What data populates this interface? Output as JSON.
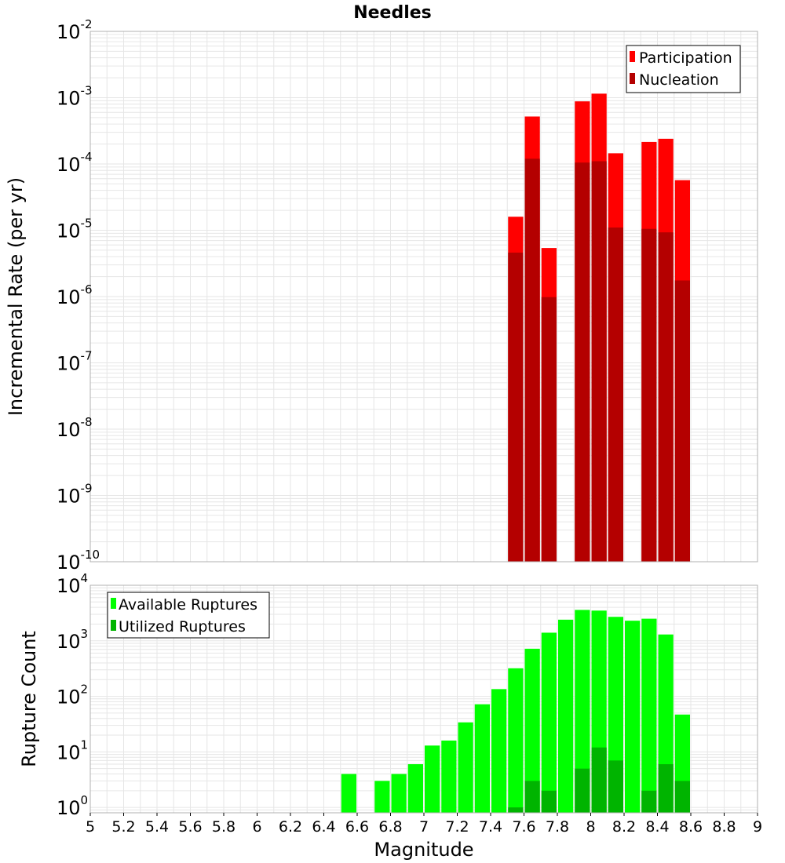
{
  "chart_data": [
    {
      "type": "bar",
      "title": "Needles",
      "xlabel": "",
      "ylabel": "Incremental Rate (per yr)",
      "yscale": "log",
      "ylim": [
        1e-10,
        0.01
      ],
      "xlim": [
        5,
        9
      ],
      "yticks": [
        {
          "base": "10",
          "exp": "-10"
        },
        {
          "base": "10",
          "exp": "-9"
        },
        {
          "base": "10",
          "exp": "-8"
        },
        {
          "base": "10",
          "exp": "-7"
        },
        {
          "base": "10",
          "exp": "-6"
        },
        {
          "base": "10",
          "exp": "-5"
        },
        {
          "base": "10",
          "exp": "-4"
        },
        {
          "base": "10",
          "exp": "-3"
        },
        {
          "base": "10",
          "exp": "-2"
        }
      ],
      "grid": true,
      "legend": "top-right",
      "bin_width": 0.1,
      "series": [
        {
          "name": "Participation",
          "color": "#ff0000",
          "x": [
            7.55,
            7.65,
            7.75,
            7.95,
            8.05,
            8.15,
            8.35,
            8.45,
            8.55
          ],
          "values": [
            1.6e-05,
            0.00052,
            5.4e-06,
            0.00088,
            0.00115,
            0.000145,
            0.000215,
            0.00024,
            5.7e-05
          ]
        },
        {
          "name": "Nucleation",
          "color": "#b40000",
          "x": [
            7.55,
            7.65,
            7.75,
            7.95,
            8.05,
            8.15,
            8.35,
            8.45,
            8.55
          ],
          "values": [
            4.6e-06,
            0.00012,
            9.8e-07,
            0.000105,
            0.00011,
            1.1e-05,
            1.05e-05,
            9.3e-06,
            1.75e-06
          ]
        }
      ]
    },
    {
      "type": "bar",
      "title": "",
      "xlabel": "Magnitude",
      "ylabel": "Rupture Count",
      "yscale": "log",
      "ylim": [
        0.8,
        10000
      ],
      "xlim": [
        5,
        9
      ],
      "xticks": [
        "5",
        "5.2",
        "5.4",
        "5.6",
        "5.8",
        "6",
        "6.2",
        "6.4",
        "6.6",
        "6.8",
        "7",
        "7.2",
        "7.4",
        "7.6",
        "7.8",
        "8",
        "8.2",
        "8.4",
        "8.6",
        "8.8",
        "9"
      ],
      "yticks": [
        {
          "base": "10",
          "exp": "0"
        },
        {
          "base": "10",
          "exp": "1"
        },
        {
          "base": "10",
          "exp": "2"
        },
        {
          "base": "10",
          "exp": "3"
        },
        {
          "base": "10",
          "exp": "4"
        }
      ],
      "grid": true,
      "legend": "top-left",
      "bin_width": 0.1,
      "series": [
        {
          "name": "Available Ruptures",
          "color": "#00ff00",
          "x": [
            6.55,
            6.75,
            6.85,
            6.95,
            7.05,
            7.15,
            7.25,
            7.35,
            7.45,
            7.55,
            7.65,
            7.75,
            7.85,
            7.95,
            8.05,
            8.15,
            8.25,
            8.35,
            8.45,
            8.55
          ],
          "values": [
            4,
            3,
            4,
            6,
            13,
            16,
            34,
            72,
            135,
            320,
            720,
            1400,
            2400,
            3600,
            3500,
            2700,
            2300,
            2500,
            1300,
            47
          ]
        },
        {
          "name": "Utilized Ruptures",
          "color": "#00b400",
          "x": [
            7.55,
            7.65,
            7.75,
            7.95,
            8.05,
            8.15,
            8.35,
            8.45,
            8.55
          ],
          "values": [
            1,
            3,
            2,
            5,
            12,
            7,
            2,
            6,
            3
          ]
        }
      ]
    }
  ]
}
